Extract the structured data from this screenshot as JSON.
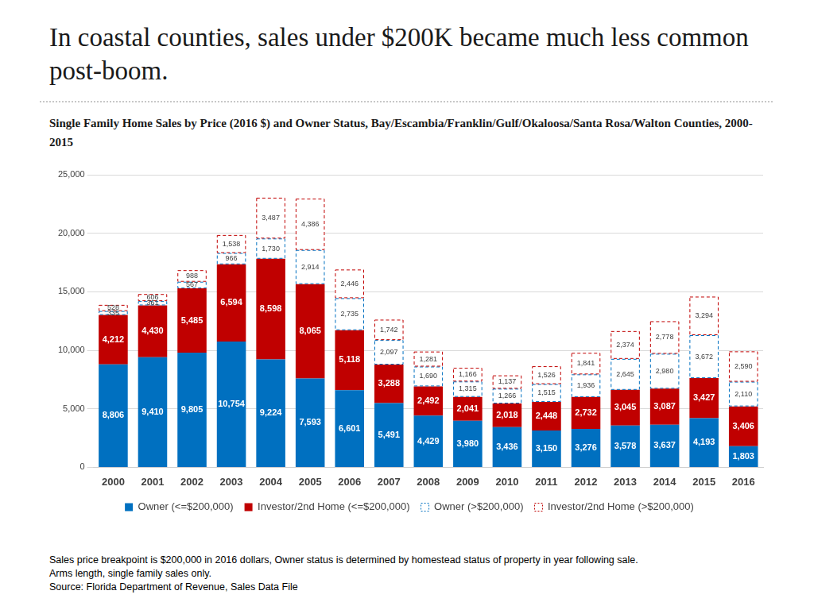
{
  "chart_data": {
    "type": "bar",
    "title": "In coastal counties, sales under $200K became much less common post-boom.",
    "subtitle": "Single Family Home Sales by Price (2016 $) and Owner Status, Bay/Escambia/Franklin/Gulf/Okaloosa/Santa Rosa/Walton Counties, 2000-2015",
    "notes": [
      "Sales price breakpoint is $200,000 in 2016 dollars, Owner status is determined by homestead status of property in year following sale.",
      "Arms length, single family sales only.",
      "Source: Florida Department of Revenue, Sales Data File"
    ],
    "categories": [
      "2000",
      "2001",
      "2002",
      "2003",
      "2004",
      "2005",
      "2006",
      "2007",
      "2008",
      "2009",
      "2010",
      "2011",
      "2012",
      "2013",
      "2014",
      "2015",
      "2016"
    ],
    "stacked": true,
    "data_labels": true,
    "grid": true,
    "legend": "bottom",
    "ylim": [
      0,
      25000
    ],
    "yticks": [
      0,
      {
        "value": 5000,
        "label": "5,000"
      },
      {
        "value": 10000,
        "label": "10,000"
      },
      {
        "value": 15000,
        "label": "15,000"
      },
      {
        "value": 20000,
        "label": "20,000"
      },
      {
        "value": 25000,
        "label": "25,000"
      }
    ],
    "series": [
      {
        "name": "Owner (<=$200,000)",
        "color": "#0070c0",
        "line_style": "solid",
        "values": [
          8806,
          9410,
          9805,
          10754,
          9224,
          7593,
          6601,
          5491,
          4429,
          3980,
          3436,
          3150,
          3276,
          3578,
          3637,
          4193,
          1803
        ],
        "value_labels": [
          "8,806",
          "9,410",
          "9,805",
          "10,754",
          "9,224",
          "7,593",
          "6,601",
          "5,491",
          "4,429",
          "3,980",
          "3,436",
          "3,150",
          "3,276",
          "3,578",
          "3,637",
          "4,193",
          "1,803"
        ]
      },
      {
        "name": "Investor/2nd Home (<=$200,000)",
        "color": "#c00000",
        "line_style": "solid",
        "values": [
          4212,
          4430,
          5485,
          6594,
          8598,
          8065,
          5118,
          3288,
          2492,
          2041,
          2018,
          2448,
          2732,
          3045,
          3087,
          3427,
          3406
        ],
        "value_labels": [
          "4,212",
          "4,430",
          "5,485",
          "6,594",
          "8,598",
          "8,065",
          "5,118",
          "3,288",
          "2,492",
          "2,041",
          "2,018",
          "2,448",
          "2,732",
          "3,045",
          "3,087",
          "3,427",
          "3,406"
        ]
      },
      {
        "name": "Owner (>$200,000)",
        "color": "#0070c0",
        "line_style": "dashed",
        "values": [
          335,
          361,
          567,
          966,
          1730,
          2914,
          2735,
          2097,
          1690,
          1315,
          1266,
          1515,
          1936,
          2645,
          2980,
          3672,
          2110
        ],
        "value_labels": [
          "335",
          "361",
          "567",
          "966",
          "1,730",
          "2,914",
          "2,735",
          "2,097",
          "1,690",
          "1,315",
          "1,266",
          "1,515",
          "1,936",
          "2,645",
          "2,980",
          "3,672",
          "2,110"
        ]
      },
      {
        "name": "Investor/2nd Home (>$200,000)",
        "color": "#c00000",
        "line_style": "dashed",
        "values": [
          528,
          606,
          988,
          1538,
          3487,
          4386,
          2446,
          1742,
          1281,
          1166,
          1137,
          1526,
          1841,
          2374,
          2778,
          3294,
          2590
        ],
        "value_labels": [
          "528",
          "606",
          "988",
          "1,538",
          "3,487",
          "4,386",
          "2,446",
          "1,742",
          "1,281",
          "1,166",
          "1,137",
          "1,526",
          "1,841",
          "2,374",
          "2,778",
          "3,294",
          "2,590"
        ]
      }
    ]
  }
}
